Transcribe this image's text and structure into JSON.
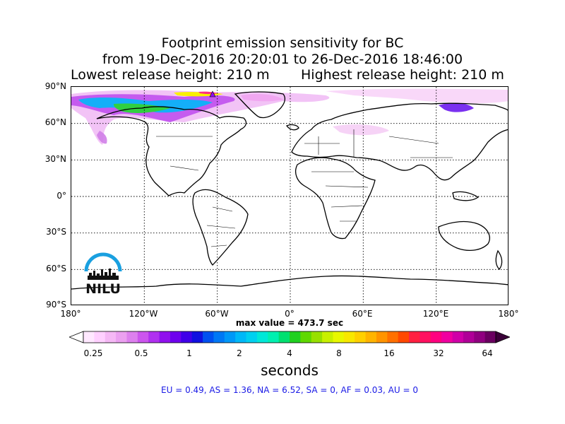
{
  "title": {
    "line1": "Footprint emission sensitivity for BC",
    "line2": "from 19-Dec-2016 20:20:01 to 26-Dec-2016 18:46:00",
    "lowest_release": "Lowest release height: 210 m",
    "highest_release": "Highest release height: 210 m"
  },
  "map": {
    "lat_ticks": [
      "90°N",
      "60°N",
      "30°N",
      "0°",
      "30°S",
      "60°S",
      "90°S"
    ],
    "lon_ticks": [
      "180°",
      "120°W",
      "60°W",
      "0°",
      "60°E",
      "120°E",
      "180°"
    ],
    "grid": true,
    "max_value_text": "max value = 473.7 sec"
  },
  "colorbar": {
    "tick_labels": [
      "0.25",
      "0.5",
      "1",
      "2",
      "4",
      "8",
      "16",
      "32",
      "64"
    ],
    "unit_label": "seconds",
    "colors": [
      "#ffe8ff",
      "#ffd0ff",
      "#f5b8f5",
      "#eba0f0",
      "#dd80ee",
      "#cc55ee",
      "#b030f0",
      "#9010ee",
      "#6e00ee",
      "#4000e8",
      "#1010e0",
      "#0050f0",
      "#0078f5",
      "#0098f8",
      "#00b8f8",
      "#00d0f0",
      "#00e8d8",
      "#00f0b0",
      "#00e070",
      "#20d020",
      "#60d800",
      "#98e000",
      "#c8f000",
      "#e8f800",
      "#f8e800",
      "#ffd000",
      "#ffb400",
      "#ff9400",
      "#ff7000",
      "#ff4800",
      "#ff2040",
      "#ff1060",
      "#ff0080",
      "#f000a0",
      "#d000a8",
      "#b00098",
      "#900080",
      "#6a0060"
    ]
  },
  "region_values": "EU = 0.49,  AS = 1.36,  NA = 6.52,  SA = 0,  AF = 0.03,  AU = 0",
  "logo": {
    "text": "NILU",
    "arc_color": "#1aa0e0"
  }
}
